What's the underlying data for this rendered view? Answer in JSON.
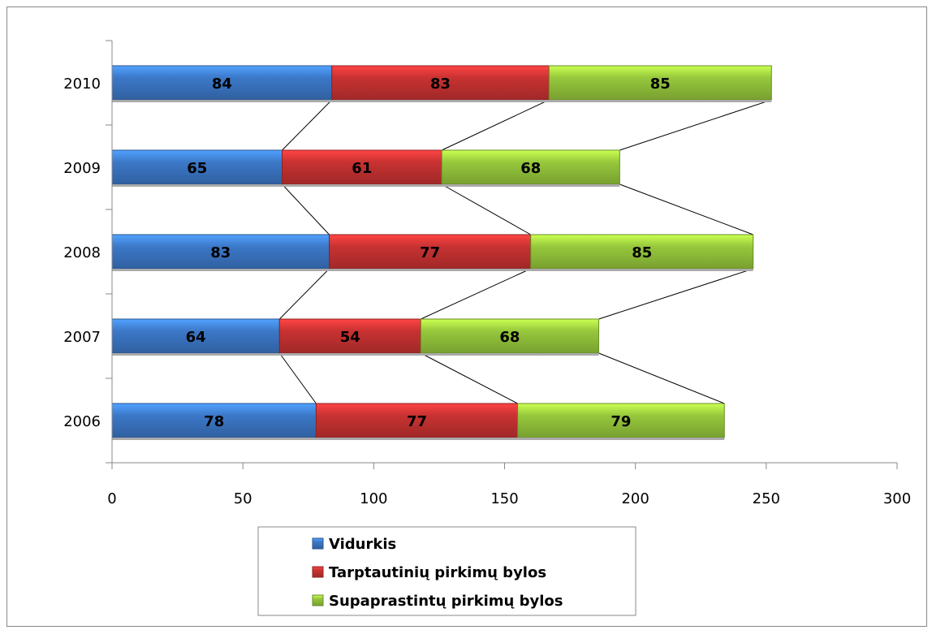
{
  "chart_data": {
    "type": "bar",
    "orientation": "horizontal",
    "stacked": true,
    "series_lines": true,
    "categories": [
      "2006",
      "2007",
      "2008",
      "2009",
      "2010"
    ],
    "series": [
      {
        "name": "Vidurkis",
        "values": [
          78,
          64,
          83,
          65,
          84
        ],
        "color": "#3c78c8"
      },
      {
        "name": "Tarptautinių pirkimų bylos",
        "values": [
          77,
          54,
          77,
          61,
          83
        ],
        "color": "#c83232"
      },
      {
        "name": "Supaprastintų pirkimų bylos",
        "values": [
          79,
          68,
          85,
          68,
          85
        ],
        "color": "#96c83c"
      }
    ],
    "xlim": [
      0,
      300
    ],
    "x_ticks": [
      "0",
      "50",
      "100",
      "150",
      "200",
      "250",
      "300"
    ],
    "grid": false,
    "legend_position": "bottom"
  }
}
